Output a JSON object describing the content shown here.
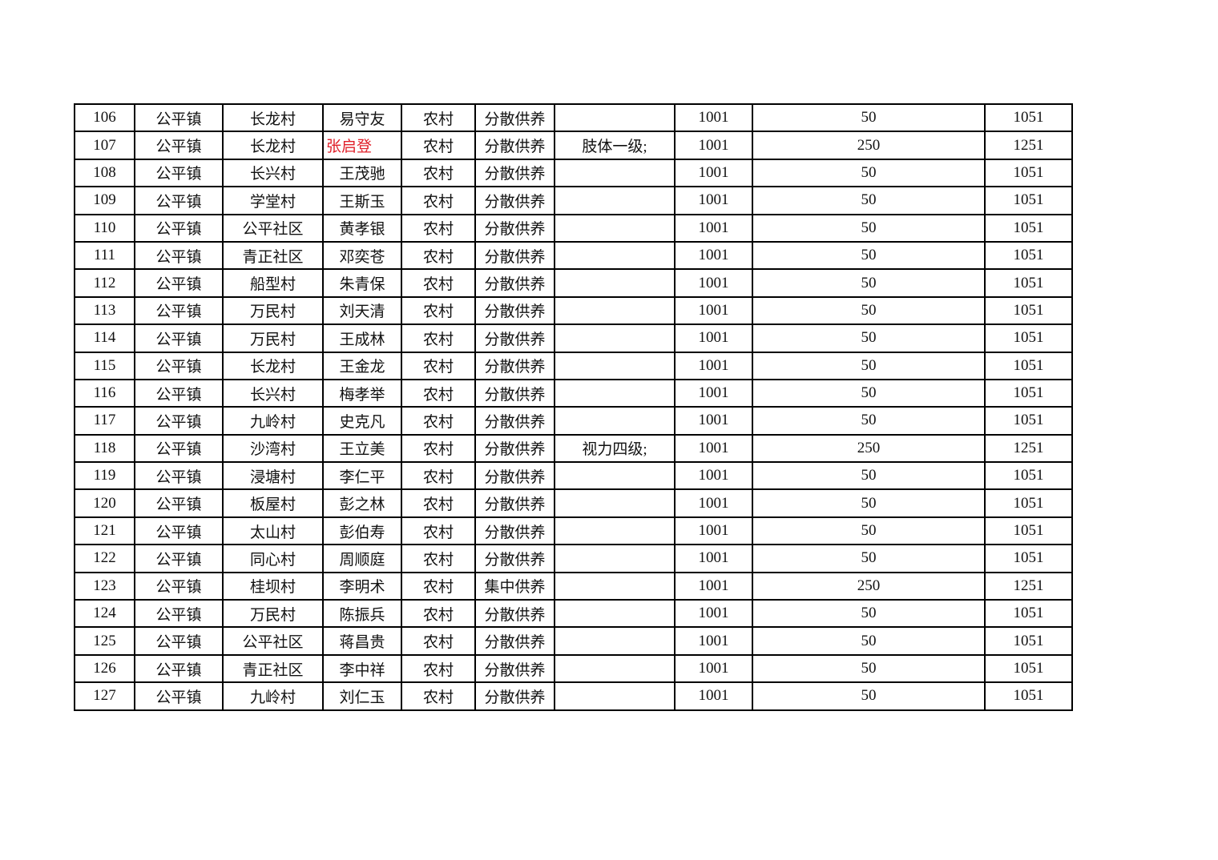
{
  "table": {
    "highlight_color": "#e0202a",
    "rows": [
      [
        "106",
        "公平镇",
        "长龙村",
        "易守友",
        "农村",
        "分散供养",
        "",
        "1001",
        "50",
        "1051"
      ],
      [
        "107",
        "公平镇",
        "长龙村",
        "张启登",
        "农村",
        "分散供养",
        "肢体一级;",
        "1001",
        "250",
        "1251"
      ],
      [
        "108",
        "公平镇",
        "长兴村",
        "王茂驰",
        "农村",
        "分散供养",
        "",
        "1001",
        "50",
        "1051"
      ],
      [
        "109",
        "公平镇",
        "学堂村",
        "王斯玉",
        "农村",
        "分散供养",
        "",
        "1001",
        "50",
        "1051"
      ],
      [
        "110",
        "公平镇",
        "公平社区",
        "黄孝银",
        "农村",
        "分散供养",
        "",
        "1001",
        "50",
        "1051"
      ],
      [
        "111",
        "公平镇",
        "青正社区",
        "邓奕苍",
        "农村",
        "分散供养",
        "",
        "1001",
        "50",
        "1051"
      ],
      [
        "112",
        "公平镇",
        "船型村",
        "朱青保",
        "农村",
        "分散供养",
        "",
        "1001",
        "50",
        "1051"
      ],
      [
        "113",
        "公平镇",
        "万民村",
        "刘天清",
        "农村",
        "分散供养",
        "",
        "1001",
        "50",
        "1051"
      ],
      [
        "114",
        "公平镇",
        "万民村",
        "王成林",
        "农村",
        "分散供养",
        "",
        "1001",
        "50",
        "1051"
      ],
      [
        "115",
        "公平镇",
        "长龙村",
        "王金龙",
        "农村",
        "分散供养",
        "",
        "1001",
        "50",
        "1051"
      ],
      [
        "116",
        "公平镇",
        "长兴村",
        "梅孝举",
        "农村",
        "分散供养",
        "",
        "1001",
        "50",
        "1051"
      ],
      [
        "117",
        "公平镇",
        "九岭村",
        "史克凡",
        "农村",
        "分散供养",
        "",
        "1001",
        "50",
        "1051"
      ],
      [
        "118",
        "公平镇",
        "沙湾村",
        "王立美",
        "农村",
        "分散供养",
        "视力四级;",
        "1001",
        "250",
        "1251"
      ],
      [
        "119",
        "公平镇",
        "浸塘村",
        "李仁平",
        "农村",
        "分散供养",
        "",
        "1001",
        "50",
        "1051"
      ],
      [
        "120",
        "公平镇",
        "板屋村",
        "彭之林",
        "农村",
        "分散供养",
        "",
        "1001",
        "50",
        "1051"
      ],
      [
        "121",
        "公平镇",
        "太山村",
        "彭伯寿",
        "农村",
        "分散供养",
        "",
        "1001",
        "50",
        "1051"
      ],
      [
        "122",
        "公平镇",
        "同心村",
        "周顺庭",
        "农村",
        "分散供养",
        "",
        "1001",
        "50",
        "1051"
      ],
      [
        "123",
        "公平镇",
        "桂坝村",
        "李明术",
        "农村",
        "集中供养",
        "",
        "1001",
        "250",
        "1251"
      ],
      [
        "124",
        "公平镇",
        "万民村",
        "陈振兵",
        "农村",
        "分散供养",
        "",
        "1001",
        "50",
        "1051"
      ],
      [
        "125",
        "公平镇",
        "公平社区",
        "蒋昌贵",
        "农村",
        "分散供养",
        "",
        "1001",
        "50",
        "1051"
      ],
      [
        "126",
        "公平镇",
        "青正社区",
        "李中祥",
        "农村",
        "分散供养",
        "",
        "1001",
        "50",
        "1051"
      ],
      [
        "127",
        "公平镇",
        "九岭村",
        "刘仁玉",
        "农村",
        "分散供养",
        "",
        "1001",
        "50",
        "1051"
      ]
    ],
    "highlighted_cells": [
      {
        "row": 1,
        "col": 3
      }
    ]
  }
}
